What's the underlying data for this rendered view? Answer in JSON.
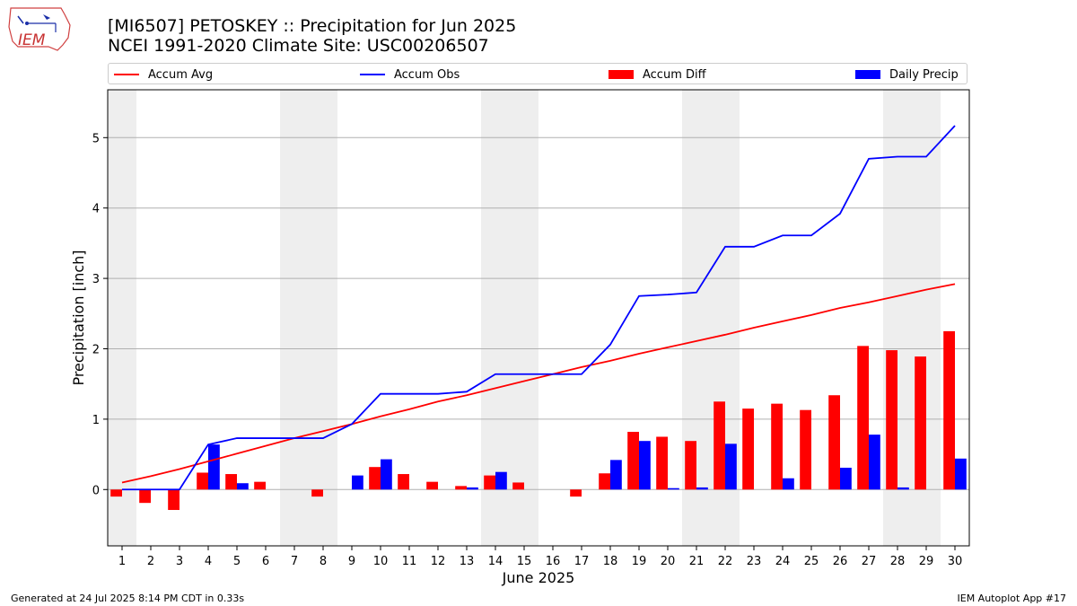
{
  "header": {
    "title_line1": "[MI6507] PETOSKEY :: Precipitation for Jun 2025",
    "title_line2": "NCEI 1991-2020 Climate Site: USC00206507"
  },
  "logo": {
    "text": "IEM"
  },
  "legend": {
    "items": [
      {
        "label": "Accum Avg",
        "color": "#ff0000",
        "kind": "line"
      },
      {
        "label": "Accum Obs",
        "color": "#0000ff",
        "kind": "line"
      },
      {
        "label": "Accum Diff",
        "color": "#ff0000",
        "kind": "patch"
      },
      {
        "label": "Daily Precip",
        "color": "#0000ff",
        "kind": "patch"
      }
    ]
  },
  "footer": {
    "left": "Generated at 24 Jul 2025 8:14 PM CDT in 0.33s",
    "right": "IEM Autoplot App #17"
  },
  "chart_data": {
    "type": "bar",
    "title": "[MI6507] PETOSKEY :: Precipitation for Jun 2025",
    "xlabel": "June 2025",
    "ylabel": "Precipitation [inch]",
    "xlim": [
      0.5,
      30.5
    ],
    "ylim": [
      -0.8,
      5.68
    ],
    "yticks": [
      0,
      1,
      2,
      3,
      4,
      5
    ],
    "grid": "y",
    "legend_position": "top",
    "weekend_shading": [
      [
        0.5,
        1.5
      ],
      [
        6.5,
        8.5
      ],
      [
        13.5,
        15.5
      ],
      [
        20.5,
        22.5
      ],
      [
        27.5,
        29.5
      ]
    ],
    "categories": [
      "1",
      "2",
      "3",
      "4",
      "5",
      "6",
      "7",
      "8",
      "9",
      "10",
      "11",
      "12",
      "13",
      "14",
      "15",
      "16",
      "17",
      "18",
      "19",
      "20",
      "21",
      "22",
      "23",
      "24",
      "25",
      "26",
      "27",
      "28",
      "29",
      "30"
    ],
    "series": [
      {
        "name": "Accum Avg",
        "type": "line",
        "color": "#ff0000",
        "values": [
          0.1,
          0.19,
          0.29,
          0.4,
          0.51,
          0.62,
          0.73,
          0.83,
          0.93,
          1.04,
          1.14,
          1.25,
          1.34,
          1.44,
          1.54,
          1.64,
          1.74,
          1.83,
          1.93,
          2.02,
          2.11,
          2.2,
          2.3,
          2.39,
          2.48,
          2.58,
          2.66,
          2.75,
          2.84,
          2.92
        ]
      },
      {
        "name": "Accum Obs",
        "type": "line",
        "color": "#0000ff",
        "values": [
          0.0,
          0.0,
          0.0,
          0.64,
          0.73,
          0.73,
          0.73,
          0.73,
          0.93,
          1.36,
          1.36,
          1.36,
          1.39,
          1.64,
          1.64,
          1.64,
          1.64,
          2.06,
          2.75,
          2.77,
          2.8,
          3.45,
          3.45,
          3.61,
          3.61,
          3.92,
          4.7,
          4.73,
          4.73,
          5.17
        ]
      },
      {
        "name": "Accum Diff",
        "type": "bar",
        "color": "#ff0000",
        "values": [
          -0.1,
          -0.19,
          -0.29,
          0.24,
          0.22,
          0.11,
          0.0,
          -0.1,
          0.0,
          0.32,
          0.22,
          0.11,
          0.05,
          0.2,
          0.1,
          0.0,
          -0.1,
          0.23,
          0.82,
          0.75,
          0.69,
          1.25,
          1.15,
          1.22,
          1.13,
          1.34,
          2.04,
          1.98,
          1.89,
          2.25
        ]
      },
      {
        "name": "Daily Precip",
        "type": "bar",
        "color": "#0000ff",
        "values": [
          0.0,
          0.0,
          0.0,
          0.64,
          0.09,
          0.0,
          0.0,
          0.0,
          0.2,
          0.43,
          0.0,
          0.0,
          0.03,
          0.25,
          0.0,
          0.0,
          0.0,
          0.42,
          0.69,
          0.02,
          0.03,
          0.65,
          0.0,
          0.16,
          0.0,
          0.31,
          0.78,
          0.03,
          0.0,
          0.44
        ]
      }
    ]
  }
}
